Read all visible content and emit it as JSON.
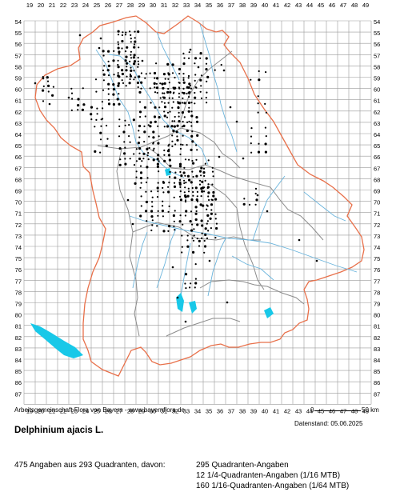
{
  "map": {
    "columns": [
      "19",
      "20",
      "21",
      "22",
      "23",
      "24",
      "25",
      "26",
      "27",
      "28",
      "29",
      "30",
      "31",
      "32",
      "33",
      "34",
      "35",
      "36",
      "37",
      "38",
      "39",
      "40",
      "41",
      "42",
      "43",
      "44",
      "45",
      "46",
      "47",
      "48",
      "49"
    ],
    "rows": [
      "54",
      "55",
      "56",
      "57",
      "58",
      "59",
      "60",
      "61",
      "62",
      "63",
      "64",
      "65",
      "66",
      "67",
      "68",
      "69",
      "70",
      "71",
      "72",
      "73",
      "74",
      "75",
      "76",
      "77",
      "78",
      "79",
      "80",
      "81",
      "82",
      "83",
      "84",
      "85",
      "86",
      "87"
    ],
    "colors": {
      "grid": "#9a9a9a",
      "state_border": "#e8704a",
      "district_border": "#8c8c8c",
      "rivers": "#6ab4dc",
      "lakes": "#18c8e8",
      "dots": "#000000"
    }
  },
  "footer": {
    "source": "Arbeitsgemeinschaft Flora von Bayern - www.bayernflora.de",
    "scale_zero": "0",
    "scale_end": "50 km",
    "date": "Datenstand: 05.06.2025",
    "title": "Delphinium ajacis L.",
    "summary": "475 Angaben aus 293 Quadranten, davon:",
    "legend_1": "295 Quadranten-Angaben",
    "legend_2": "12 1/4-Quadranten-Angaben (1/16 MTB)",
    "legend_3": "160 1/16-Quadranten-Angaben (1/64 MTB)"
  }
}
